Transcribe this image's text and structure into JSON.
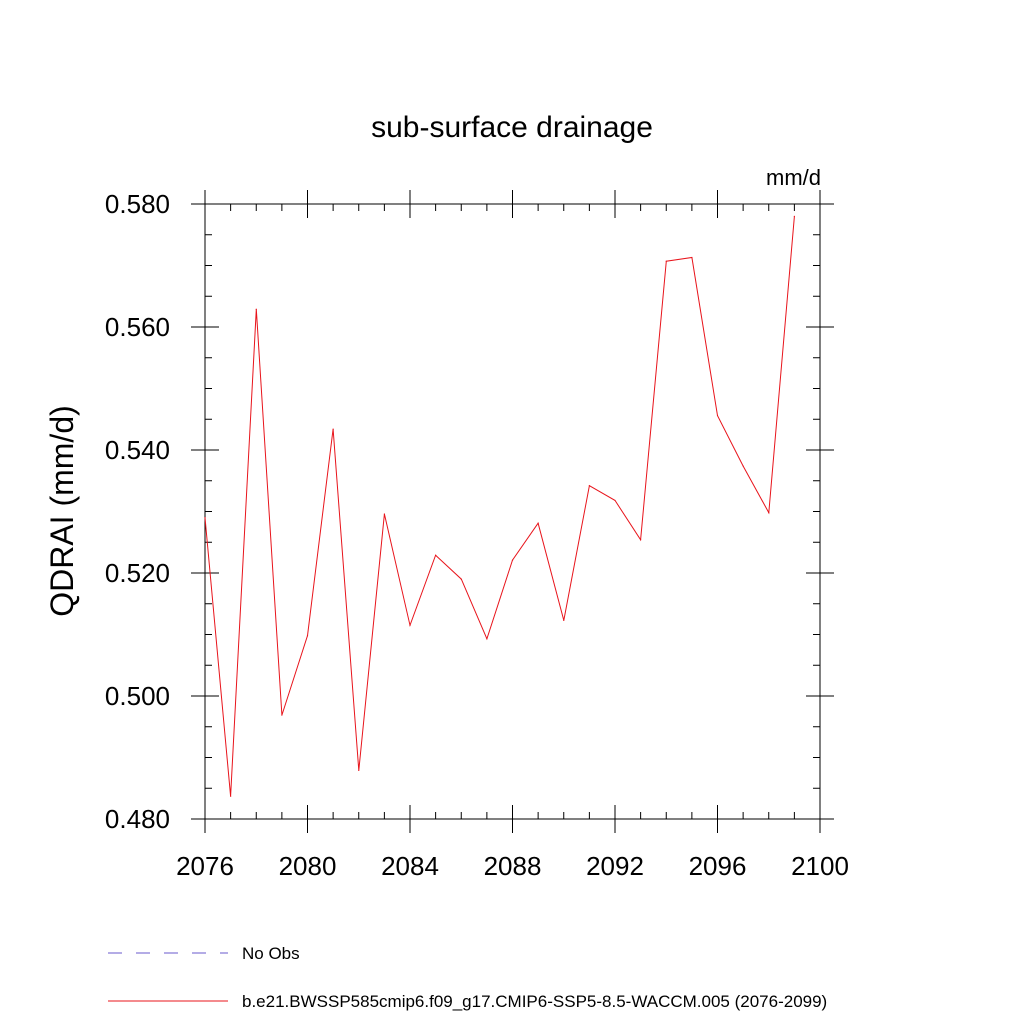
{
  "chart_data": {
    "type": "line",
    "title": "sub-surface drainage",
    "units_label": "mm/d",
    "ylabel": "QDRAI  (mm/d)",
    "xlabel": "",
    "xlim": [
      2076,
      2100
    ],
    "ylim": [
      0.48,
      0.58
    ],
    "x_ticks": [
      2076,
      2080,
      2084,
      2088,
      2092,
      2096,
      2100
    ],
    "x_tick_labels": [
      "2076",
      "2080",
      "2084",
      "2088",
      "2092",
      "2096",
      "2100"
    ],
    "x_minor_step": 1,
    "y_ticks": [
      0.48,
      0.5,
      0.52,
      0.54,
      0.56,
      0.58
    ],
    "y_tick_labels": [
      "0.480",
      "0.500",
      "0.520",
      "0.540",
      "0.560",
      "0.580"
    ],
    "y_minor_step": 0.005,
    "grid": false,
    "legend_position": "bottom",
    "series": [
      {
        "name": "b.e21.BWSSP585cmip6.f09_g17.CMIP6-SSP5-8.5-WACCM.005 (2076-2099)",
        "color": "#e8141b",
        "style": "solid",
        "x": [
          2076,
          2077,
          2078,
          2079,
          2080,
          2081,
          2082,
          2083,
          2084,
          2085,
          2086,
          2087,
          2088,
          2089,
          2090,
          2091,
          2092,
          2093,
          2094,
          2095,
          2096,
          2097,
          2098,
          2099
        ],
        "values": [
          0.529,
          0.4837,
          0.5629,
          0.4969,
          0.5098,
          0.5434,
          0.4879,
          0.5296,
          0.5115,
          0.5229,
          0.519,
          0.5093,
          0.5221,
          0.5281,
          0.5123,
          0.5342,
          0.5318,
          0.5254,
          0.5707,
          0.5713,
          0.5456,
          0.5374,
          0.5298,
          0.578
        ]
      }
    ],
    "legend": [
      {
        "label": "No Obs",
        "color": "#6a5acd",
        "style": "dashed"
      },
      {
        "label": "b.e21.BWSSP585cmip6.f09_g17.CMIP6-SSP5-8.5-WACCM.005 (2076-2099)",
        "color": "#e8141b",
        "style": "solid"
      }
    ]
  }
}
